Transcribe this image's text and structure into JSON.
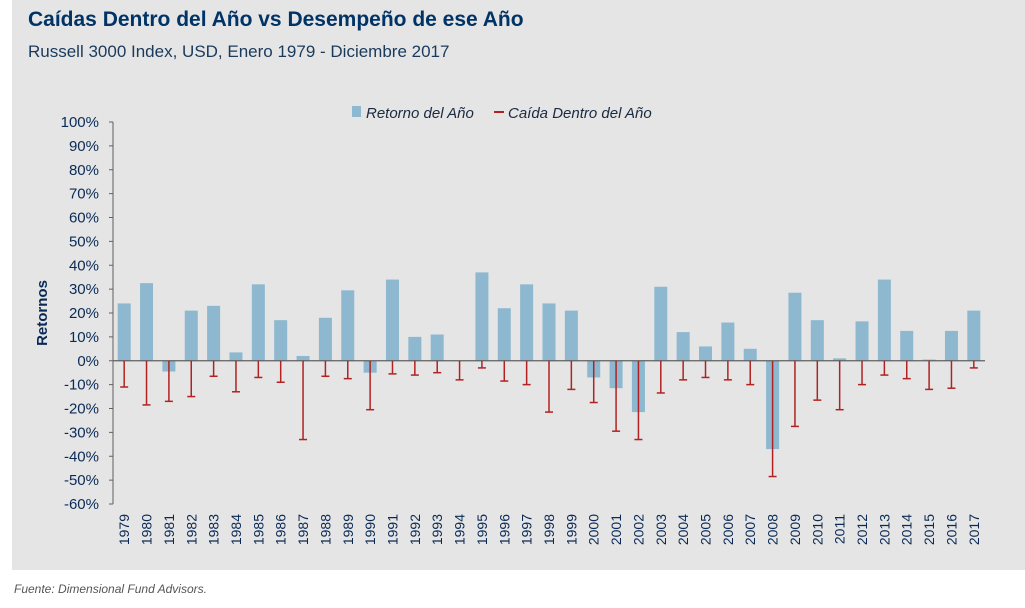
{
  "title": "Caídas Dentro del Año vs Desempeño de ese Año",
  "subtitle": "Russell 3000 Index, USD, Enero 1979 - Diciembre 2017",
  "source": "Fuente: Dimensional Fund Advisors.",
  "colors": {
    "bar": "#8db8cf",
    "drop": "#b22222",
    "axis": "#606060"
  },
  "chart_data": {
    "type": "bar",
    "ylabel": "Retornos",
    "ylim": [
      -60,
      100
    ],
    "yticks": [
      "100%",
      "90%",
      "80%",
      "70%",
      "60%",
      "50%",
      "40%",
      "30%",
      "20%",
      "10%",
      "0%",
      "-10%",
      "-20%",
      "-30%",
      "-40%",
      "-50%",
      "-60%"
    ],
    "legend": {
      "position": "top-center",
      "entries": [
        "Retorno del Año",
        "Caída Dentro del Año"
      ]
    },
    "categories": [
      "1979",
      "1980",
      "1981",
      "1982",
      "1983",
      "1984",
      "1985",
      "1986",
      "1987",
      "1988",
      "1989",
      "1990",
      "1991",
      "1992",
      "1993",
      "1994",
      "1995",
      "1996",
      "1997",
      "1998",
      "1999",
      "2000",
      "2001",
      "2002",
      "2003",
      "2004",
      "2005",
      "2006",
      "2007",
      "2008",
      "2009",
      "2010",
      "2011",
      "2012",
      "2013",
      "2014",
      "2015",
      "2016",
      "2017"
    ],
    "series": [
      {
        "name": "Retorno del Año",
        "type": "bar",
        "values": [
          24,
          32.5,
          -4.5,
          21,
          23,
          3.5,
          32,
          17,
          2,
          18,
          29.5,
          -5,
          34,
          10,
          11,
          0,
          37,
          22,
          32,
          24,
          21,
          -7,
          -11.5,
          -21.5,
          31,
          12,
          6,
          16,
          5,
          -37,
          28.5,
          17,
          1,
          16.5,
          34,
          12.5,
          0.5,
          12.5,
          21
        ]
      },
      {
        "name": "Caída Dentro del Año",
        "type": "drop",
        "values": [
          -11,
          -18.5,
          -17,
          -15,
          -6.5,
          -13,
          -7,
          -9,
          -33,
          -6.5,
          -7.5,
          -20.5,
          -5.5,
          -6,
          -5,
          -8,
          -3,
          -8.5,
          -10,
          -21.5,
          -12,
          -17.5,
          -29.5,
          -33,
          -13.5,
          -8,
          -7,
          -8,
          -10,
          -48.5,
          -27.5,
          -16.5,
          -20.5,
          -10,
          -6,
          -7.5,
          -12,
          -11.5,
          -3
        ]
      }
    ]
  }
}
